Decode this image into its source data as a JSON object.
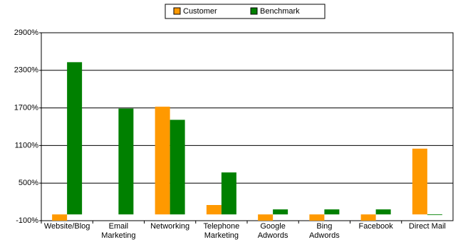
{
  "chart_data": {
    "type": "bar",
    "categories": [
      "Website/Blog",
      "Email\nMarketing",
      "Networking",
      "Telephone\nMarketing",
      "Google\nAdwords",
      "Bing\nAdwords",
      "Facebook",
      "Direct Mail"
    ],
    "series": [
      {
        "name": "Customer",
        "color": "#ff9900",
        "values": [
          -100,
          0,
          1720,
          150,
          -100,
          -100,
          -100,
          1050
        ]
      },
      {
        "name": "Benchmark",
        "color": "#008000",
        "values": [
          2430,
          1690,
          1510,
          670,
          80,
          80,
          80,
          -10
        ]
      }
    ],
    "ylim": [
      -100,
      2900
    ],
    "yticks": [
      {
        "value": -100,
        "label": "-100%"
      },
      {
        "value": 500,
        "label": "500%"
      },
      {
        "value": 1100,
        "label": "1100%"
      },
      {
        "value": 1700,
        "label": "1700%"
      },
      {
        "value": 2300,
        "label": "2300%"
      },
      {
        "value": 2900,
        "label": "2900%"
      }
    ],
    "grid": true,
    "legend": "top"
  }
}
